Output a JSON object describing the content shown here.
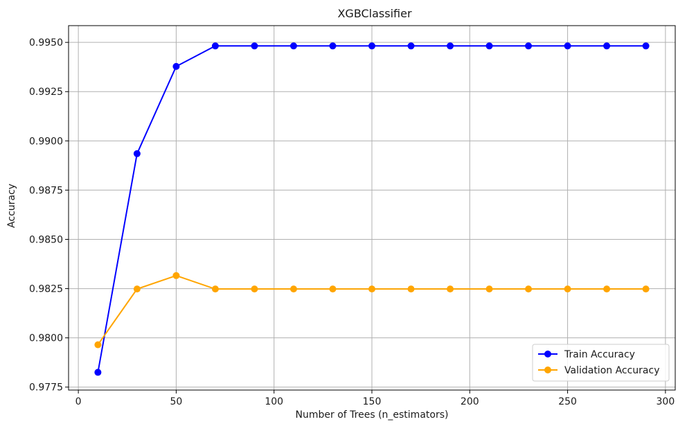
{
  "chart_data": {
    "type": "line",
    "title": "XGBClassifier",
    "xlabel": "Number of Trees (n_estimators)",
    "ylabel": "Accuracy",
    "xlim": [
      -5,
      305
    ],
    "ylim": [
      0.97735,
      0.99585
    ],
    "xticks": [
      0,
      50,
      100,
      150,
      200,
      250,
      300
    ],
    "yticks": [
      0.9775,
      0.98,
      0.9825,
      0.985,
      0.9875,
      0.99,
      0.9925,
      0.995
    ],
    "ytick_labels": [
      "0.9775",
      "0.9800",
      "0.9825",
      "0.9850",
      "0.9875",
      "0.9900",
      "0.9925",
      "0.9950"
    ],
    "grid": true,
    "legend_position": "bottom-right",
    "x": [
      10,
      30,
      50,
      70,
      90,
      110,
      130,
      150,
      170,
      190,
      210,
      230,
      250,
      270,
      290
    ],
    "series": [
      {
        "name": "Train Accuracy",
        "color": "#0000ff",
        "marker": "circle",
        "values": [
          0.97825,
          0.98935,
          0.99378,
          0.99482,
          0.99482,
          0.99482,
          0.99482,
          0.99482,
          0.99482,
          0.99482,
          0.99482,
          0.99482,
          0.99482,
          0.99482,
          0.99482
        ]
      },
      {
        "name": "Validation Accuracy",
        "color": "#ffa500",
        "marker": "circle",
        "values": [
          0.97965,
          0.98248,
          0.98316,
          0.98248,
          0.98248,
          0.98248,
          0.98248,
          0.98248,
          0.98248,
          0.98248,
          0.98248,
          0.98248,
          0.98248,
          0.98248,
          0.98248
        ]
      }
    ]
  }
}
